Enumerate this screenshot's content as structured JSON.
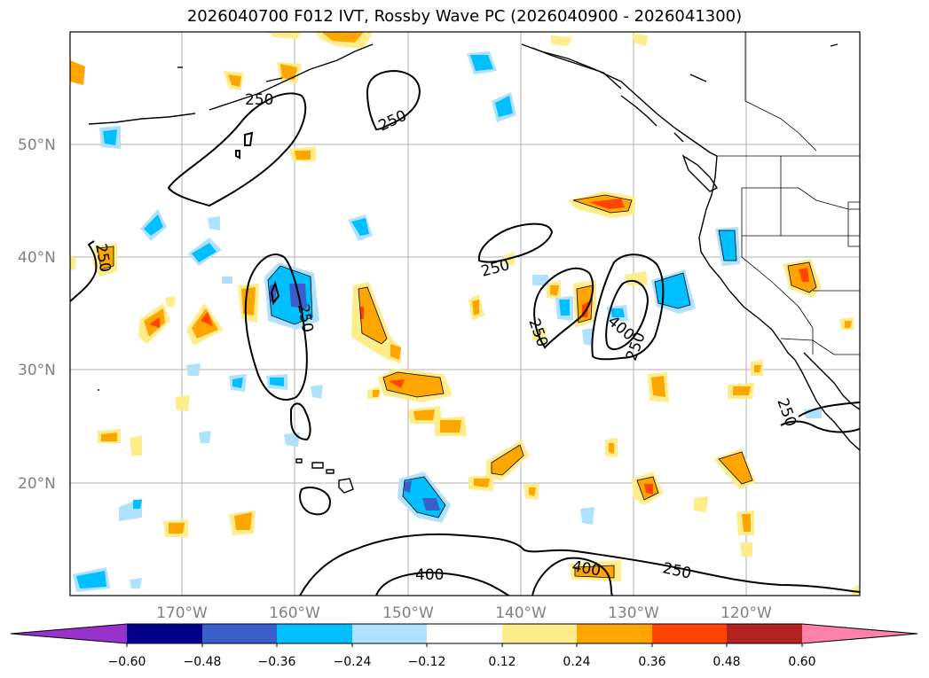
{
  "title": "2026040700 F012 IVT, Rossby Wave PC (2026040900 - 2026041300)",
  "lat_labels": [
    "50°N",
    "40°N",
    "30°N",
    "20°N"
  ],
  "lon_labels": [
    "170°W",
    "160°W",
    "150°W",
    "140°W",
    "130°W",
    "120°W"
  ],
  "colorbar": {
    "ticks": [
      "−0.60",
      "−0.48",
      "−0.36",
      "−0.24",
      "−0.12",
      "0.12",
      "0.24",
      "0.36",
      "0.48",
      "0.60"
    ],
    "colors": [
      "#9932cc",
      "#00008b",
      "#3a5fcd",
      "#00bfff",
      "#b0e2ff",
      "#ffffff",
      "#ffec8b",
      "#ffa500",
      "#ff4500",
      "#b22222",
      "#ff82ab"
    ]
  },
  "contour_labels": [
    "250",
    "250",
    "250",
    "250",
    "250",
    "250",
    "250",
    "250",
    "400",
    "400",
    "400",
    "250",
    "250"
  ]
}
